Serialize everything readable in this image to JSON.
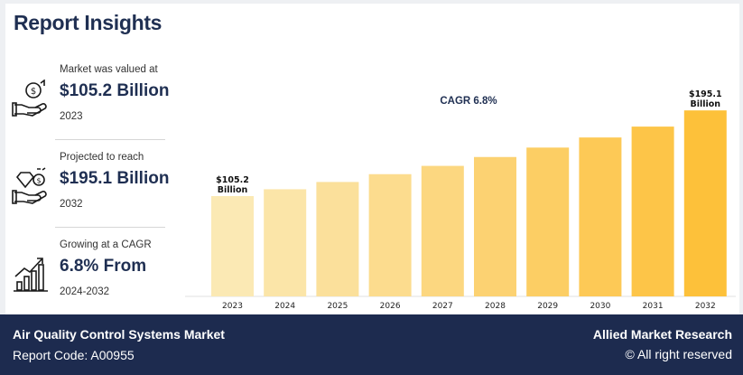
{
  "report": {
    "title": "Report Insights"
  },
  "stats": [
    {
      "label": "Market was valued at",
      "value": "$105.2 Billion",
      "year": "2023"
    },
    {
      "label": "Projected to reach",
      "value": "$195.1 Billion",
      "year": "2032"
    },
    {
      "label": "Growing at a CAGR",
      "value": "6.8% From",
      "year": "2024-2032"
    }
  ],
  "chart_data": {
    "type": "bar",
    "title": "CAGR 6.8%",
    "categories": [
      "2023",
      "2024",
      "2025",
      "2026",
      "2027",
      "2028",
      "2029",
      "2030",
      "2031",
      "2032"
    ],
    "values": [
      105.2,
      112.4,
      120.0,
      128.2,
      136.9,
      146.2,
      156.1,
      166.7,
      178.1,
      195.1
    ],
    "annotations": [
      {
        "category": "2023",
        "text": "$105.2\nBillion"
      },
      {
        "category": "2032",
        "text": "$195.1\nBillion"
      }
    ],
    "colors": [
      "#fbe9b4",
      "#fbe5a8",
      "#fbe09b",
      "#fcdc8e",
      "#fcd780",
      "#fcd272",
      "#fcce64",
      "#fdc956",
      "#fdc548",
      "#fdc13a"
    ],
    "xlabel": "",
    "ylabel": "",
    "ylim": [
      0,
      200
    ],
    "grid": false,
    "legend": "none"
  },
  "footer": {
    "market": "Air Quality Control Systems Market",
    "code": "Report Code: A00955",
    "brand": "Allied Market Research",
    "rights": "© All right reserved"
  },
  "icons": [
    "money-hand-icon",
    "diamond-hand-icon",
    "growth-chart-icon"
  ]
}
